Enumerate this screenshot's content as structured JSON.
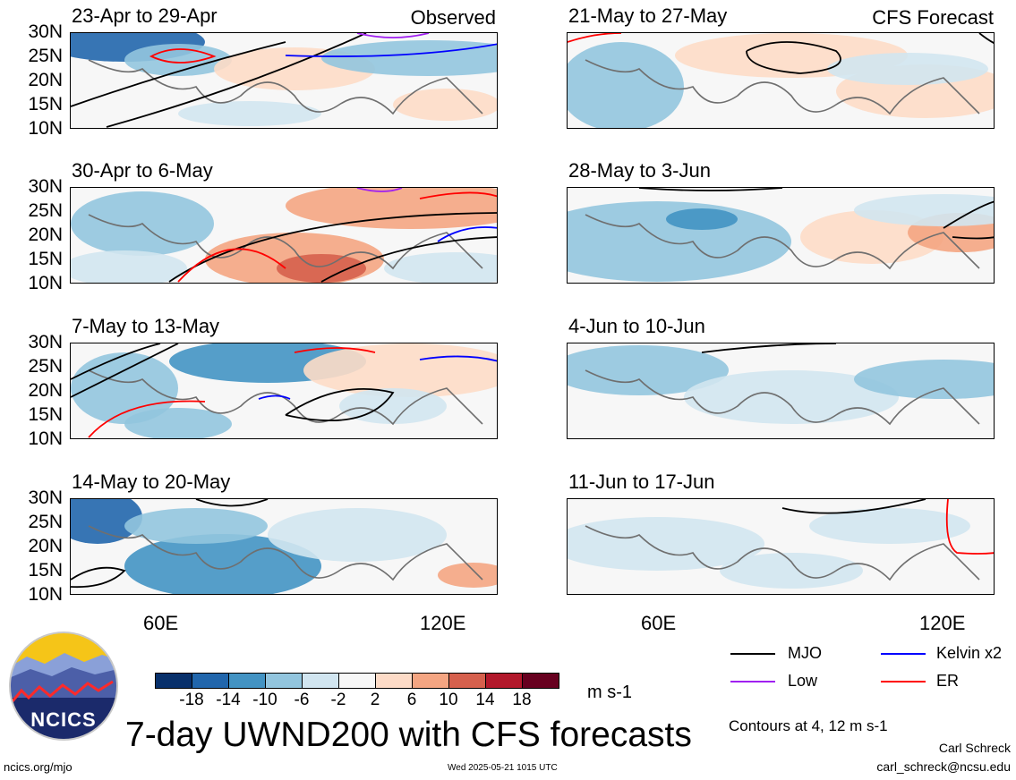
{
  "observed_label": "Observed",
  "forecast_label": "CFS Forecast",
  "lat_labels": [
    "30N",
    "25N",
    "20N",
    "15N",
    "10N"
  ],
  "lon_labels": [
    "60E",
    "120E"
  ],
  "panels": [
    {
      "title": "23-Apr to 29-Apr"
    },
    {
      "title": "30-Apr to 6-May"
    },
    {
      "title": "7-May to 13-May"
    },
    {
      "title": "14-May to 20-May"
    },
    {
      "title": "21-May to 27-May"
    },
    {
      "title": "28-May to 3-Jun"
    },
    {
      "title": "4-Jun to 10-Jun"
    },
    {
      "title": "11-Jun to 17-Jun"
    }
  ],
  "colorbar": {
    "labels": [
      "-18",
      "-14",
      "-10",
      "-6",
      "-2",
      "2",
      "6",
      "10",
      "14",
      "18"
    ],
    "colors": [
      "#08306b",
      "#2166ac",
      "#4393c3",
      "#92c5de",
      "#d1e5f0",
      "#f7f7f7",
      "#fddbc7",
      "#f4a582",
      "#d6604d",
      "#b2182b",
      "#67001f"
    ],
    "units": "m s-1"
  },
  "legend": {
    "mjo": "MJO",
    "kelvin": "Kelvin x2",
    "low": "Low",
    "er": "ER",
    "colors": {
      "mjo": "#000000",
      "kelvin": "#0000ff",
      "low": "#a020f0",
      "er": "#ff0000"
    },
    "contours_note": "Contours at 4, 12 m s-1"
  },
  "logo_text": "NCICS",
  "main_title": "7-day UWND200 with CFS forecasts",
  "author": "Carl Schreck",
  "email": "carl_schreck@ncsu.edu",
  "url": "ncics.org/mjo",
  "timestamp": "Wed 2025-05-21 1015 UTC"
}
